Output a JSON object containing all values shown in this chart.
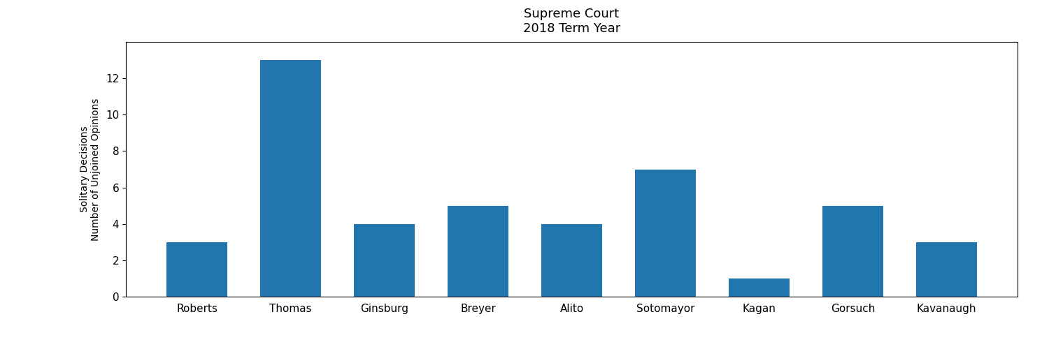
{
  "title_line1": "Supreme Court",
  "title_line2": "2018 Term Year",
  "categories": [
    "Roberts",
    "Thomas",
    "Ginsburg",
    "Breyer",
    "Alito",
    "Sotomayor",
    "Kagan",
    "Gorsuch",
    "Kavanaugh"
  ],
  "values": [
    3,
    13,
    4,
    5,
    4,
    7,
    1,
    5,
    3
  ],
  "bar_color": "#2176AE",
  "ylabel_line1": "Solitary Decisions",
  "ylabel_line2": "Number of Unjoined Opinions",
  "ylim": [
    0,
    14
  ],
  "yticks": [
    0,
    2,
    4,
    6,
    8,
    10,
    12
  ],
  "background_color": "#ffffff",
  "title_fontsize": 13,
  "label_fontsize": 10,
  "tick_fontsize": 11
}
